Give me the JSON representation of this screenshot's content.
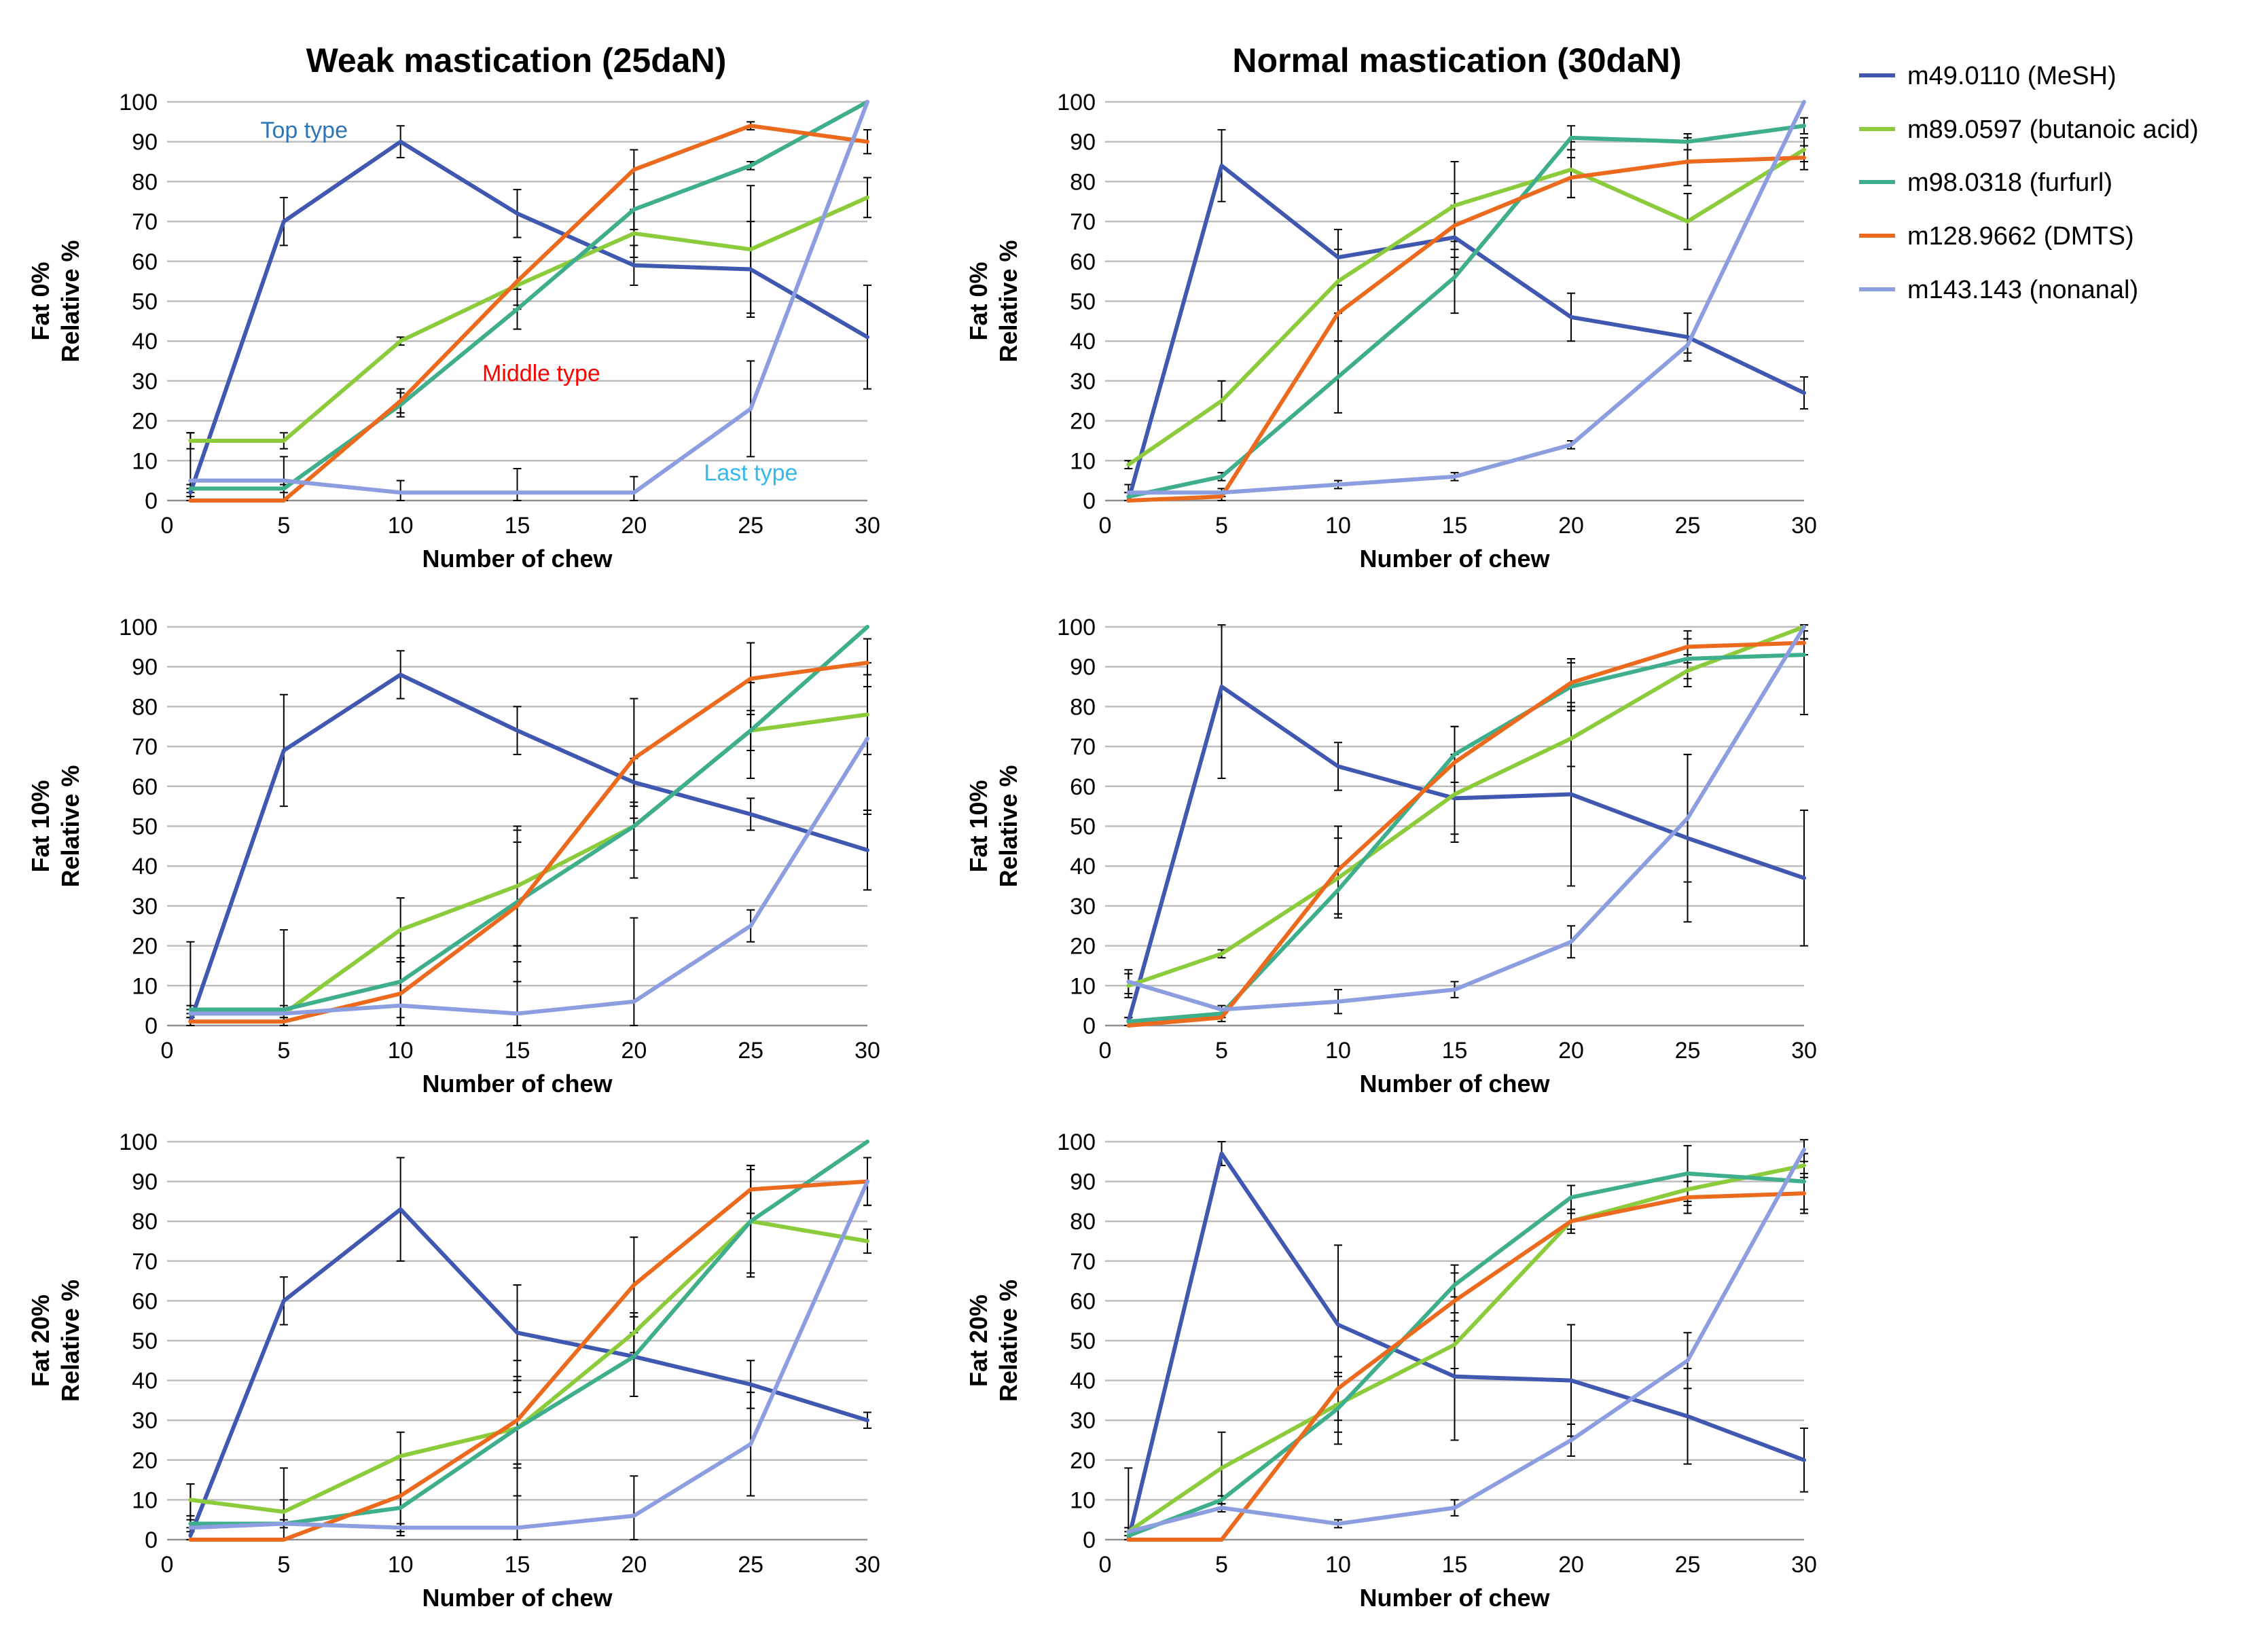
{
  "columns": [
    {
      "title": "Weak mastication (25daN)"
    },
    {
      "title": "Normal mastication (30daN)"
    }
  ],
  "series": [
    {
      "key": "mesh",
      "label": "m49.0110 (MeSH)",
      "color": "#4158b0"
    },
    {
      "key": "butanoic",
      "label": "m89.0597 (butanoic acid)",
      "color": "#8ccc3c"
    },
    {
      "key": "furfurl",
      "label": "m98.0318 (furfurl)",
      "color": "#3fae8c"
    },
    {
      "key": "dmts",
      "label": "m128.9662 (DMTS)",
      "color": "#ec6a1e"
    },
    {
      "key": "nonanal",
      "label": "m143.143 (nonanal)",
      "color": "#8c9ee0"
    }
  ],
  "chart_data": [
    {
      "type": "line",
      "id": "weak-fat0",
      "xlabel": "Number of chew",
      "ylabel": [
        "Fat 0%",
        "Relative %"
      ],
      "x": [
        1,
        5,
        10,
        15,
        20,
        25,
        30
      ],
      "xticks": [
        0,
        5,
        10,
        15,
        20,
        25,
        30
      ],
      "xlim": [
        0,
        30
      ],
      "ylim": [
        0,
        100
      ],
      "yticks": [
        0,
        10,
        20,
        30,
        40,
        50,
        60,
        70,
        80,
        90,
        100
      ],
      "series": {
        "mesh": [
          2,
          70,
          90,
          72,
          59,
          58,
          41
        ],
        "butanoic": [
          15,
          15,
          40,
          54,
          67,
          63,
          76
        ],
        "furfurl": [
          3,
          3,
          24,
          48,
          73,
          84,
          100
        ],
        "dmts": [
          0,
          0,
          25,
          55,
          83,
          94,
          90
        ],
        "nonanal": [
          5,
          5,
          2,
          2,
          2,
          23,
          100
        ]
      },
      "errors": {
        "mesh": [
          1,
          6,
          4,
          6,
          5,
          12,
          13
        ],
        "butanoic": [
          2,
          2,
          1,
          6,
          6,
          16,
          5
        ],
        "furfurl": [
          1,
          1,
          3,
          5,
          5,
          1,
          0
        ],
        "dmts": [
          0,
          0,
          3,
          6,
          5,
          1,
          3
        ],
        "nonanal": [
          12,
          6,
          3,
          6,
          4,
          12,
          0
        ]
      },
      "annotations": [
        {
          "text": "Top type",
          "color": "#2e75b6",
          "x": 4,
          "y": 91
        },
        {
          "text": "Middle type",
          "color": "#ff0000",
          "x": 13.5,
          "y": 30
        },
        {
          "text": "Last type",
          "color": "#35b8ea",
          "x": 23,
          "y": 5
        }
      ]
    },
    {
      "type": "line",
      "id": "normal-fat0",
      "xlabel": "Number of chew",
      "ylabel": [
        "Fat 0%",
        "Relative %"
      ],
      "x": [
        1,
        5,
        10,
        15,
        20,
        25,
        30
      ],
      "xticks": [
        0,
        5,
        10,
        15,
        20,
        25,
        30
      ],
      "xlim": [
        0,
        30
      ],
      "ylim": [
        0,
        100
      ],
      "yticks": [
        0,
        10,
        20,
        30,
        40,
        50,
        60,
        70,
        80,
        90,
        100
      ],
      "series": {
        "mesh": [
          0,
          84,
          61,
          66,
          46,
          41,
          27
        ],
        "butanoic": [
          9,
          25,
          55,
          74,
          83,
          70,
          88
        ],
        "furfurl": [
          1,
          6,
          31,
          56,
          91,
          90,
          94
        ],
        "dmts": [
          0,
          1,
          47,
          69,
          81,
          85,
          86
        ],
        "nonanal": [
          2,
          2,
          4,
          6,
          14,
          39,
          100
        ]
      },
      "errors": {
        "mesh": [
          2,
          9,
          7,
          8,
          6,
          6,
          4
        ],
        "butanoic": [
          1,
          5,
          8,
          11,
          7,
          7,
          3
        ],
        "furfurl": [
          1,
          1,
          9,
          9,
          3,
          2,
          2
        ],
        "dmts": [
          0,
          1,
          7,
          8,
          5,
          6,
          3
        ],
        "nonanal": [
          2,
          1,
          1,
          1,
          1,
          2,
          0
        ]
      },
      "annotations": []
    },
    {
      "type": "line",
      "id": "weak-fat10",
      "xlabel": "Number of chew",
      "ylabel": [
        "Fat 10%",
        "Relative %"
      ],
      "x": [
        1,
        5,
        10,
        15,
        20,
        25,
        30
      ],
      "xticks": [
        0,
        5,
        10,
        15,
        20,
        25,
        30
      ],
      "xlim": [
        0,
        30
      ],
      "ylim": [
        0,
        100
      ],
      "yticks": [
        0,
        10,
        20,
        30,
        40,
        50,
        60,
        70,
        80,
        90,
        100
      ],
      "series": {
        "mesh": [
          1,
          69,
          88,
          74,
          61,
          53,
          44
        ],
        "butanoic": [
          3,
          3,
          24,
          35,
          50,
          74,
          78
        ],
        "furfurl": [
          4,
          4,
          11,
          31,
          50,
          74,
          100
        ],
        "dmts": [
          1,
          1,
          8,
          30,
          67,
          87,
          91
        ],
        "nonanal": [
          3,
          3,
          5,
          3,
          6,
          25,
          72
        ]
      },
      "errors": {
        "mesh": [
          1,
          14,
          6,
          6,
          6,
          4,
          10
        ],
        "butanoic": [
          1,
          1,
          8,
          15,
          13,
          12,
          10
        ],
        "furfurl": [
          1,
          1,
          9,
          15,
          6,
          5,
          0
        ],
        "dmts": [
          0,
          1,
          8,
          19,
          15,
          9,
          6
        ],
        "nonanal": [
          18,
          21,
          12,
          17,
          21,
          4,
          19
        ]
      },
      "annotations": []
    },
    {
      "type": "line",
      "id": "normal-fat10",
      "xlabel": "Number of chew",
      "ylabel": [
        "Fat 10%",
        "Relative %"
      ],
      "x": [
        1,
        5,
        10,
        15,
        20,
        25,
        30
      ],
      "xticks": [
        0,
        5,
        10,
        15,
        20,
        25,
        30
      ],
      "xlim": [
        0,
        30
      ],
      "ylim": [
        0,
        100
      ],
      "yticks": [
        0,
        10,
        20,
        30,
        40,
        50,
        60,
        70,
        80,
        90,
        100
      ],
      "series": {
        "mesh": [
          1,
          85,
          65,
          57,
          58,
          47,
          37
        ],
        "butanoic": [
          10,
          18,
          37,
          58,
          72,
          89,
          100
        ],
        "furfurl": [
          1,
          3,
          34,
          68,
          85,
          92,
          93
        ],
        "dmts": [
          0,
          2,
          39,
          66,
          86,
          95,
          96
        ],
        "nonanal": [
          11,
          4,
          6,
          9,
          21,
          52,
          100
        ]
      },
      "errors": {
        "mesh": [
          1,
          23,
          6,
          11,
          23,
          21,
          17
        ],
        "butanoic": [
          3,
          1,
          10,
          10,
          7,
          4,
          3
        ],
        "furfurl": [
          1,
          1,
          6,
          7,
          6,
          5,
          15
        ],
        "dmts": [
          0,
          1,
          11,
          9,
          6,
          4,
          3
        ],
        "nonanal": [
          3,
          1,
          3,
          2,
          4,
          16,
          3
        ]
      },
      "annotations": []
    },
    {
      "type": "line",
      "id": "weak-fat20",
      "xlabel": "Number of chew",
      "ylabel": [
        "Fat 20%",
        "Relative %"
      ],
      "x": [
        1,
        5,
        10,
        15,
        20,
        25,
        30
      ],
      "xticks": [
        0,
        5,
        10,
        15,
        20,
        25,
        30
      ],
      "xlim": [
        0,
        30
      ],
      "ylim": [
        0,
        100
      ],
      "yticks": [
        0,
        10,
        20,
        30,
        40,
        50,
        60,
        70,
        80,
        90,
        100
      ],
      "series": {
        "mesh": [
          1,
          60,
          83,
          52,
          46,
          39,
          30
        ],
        "butanoic": [
          10,
          7,
          21,
          28,
          52,
          80,
          75
        ],
        "furfurl": [
          4,
          4,
          8,
          28,
          46,
          80,
          100
        ],
        "dmts": [
          0,
          0,
          11,
          30,
          64,
          88,
          90
        ],
        "nonanal": [
          3,
          4,
          3,
          3,
          6,
          24,
          90
        ]
      },
      "errors": {
        "mesh": [
          1,
          6,
          13,
          12,
          10,
          6,
          2
        ],
        "butanoic": [
          4,
          3,
          6,
          9,
          5,
          14,
          3
        ],
        "furfurl": [
          1,
          1,
          7,
          17,
          10,
          13,
          0
        ],
        "dmts": [
          0,
          0,
          10,
          11,
          12,
          6,
          6
        ],
        "nonanal": [
          11,
          14,
          1,
          15,
          10,
          13,
          6
        ]
      },
      "annotations": []
    },
    {
      "type": "line",
      "id": "normal-fat20",
      "xlabel": "Number of chew",
      "ylabel": [
        "Fat 20%",
        "Relative %"
      ],
      "x": [
        1,
        5,
        10,
        15,
        20,
        25,
        30
      ],
      "xticks": [
        0,
        5,
        10,
        15,
        20,
        25,
        30
      ],
      "xlim": [
        0,
        30
      ],
      "ylim": [
        0,
        100
      ],
      "yticks": [
        0,
        10,
        20,
        30,
        40,
        50,
        60,
        70,
        80,
        90,
        100
      ],
      "series": {
        "mesh": [
          0,
          97,
          54,
          41,
          40,
          31,
          20
        ],
        "butanoic": [
          2,
          18,
          34,
          49,
          80,
          88,
          94
        ],
        "furfurl": [
          1,
          10,
          33,
          64,
          86,
          92,
          90
        ],
        "dmts": [
          0,
          0,
          38,
          60,
          80,
          86,
          87
        ],
        "nonanal": [
          2,
          8,
          4,
          8,
          25,
          45,
          98
        ]
      },
      "errors": {
        "mesh": [
          18,
          3,
          20,
          16,
          14,
          12,
          8
        ],
        "butanoic": [
          1,
          9,
          7,
          6,
          3,
          4,
          3
        ],
        "furfurl": [
          1,
          1,
          9,
          3,
          3,
          7,
          7
        ],
        "dmts": [
          0,
          0,
          8,
          9,
          2,
          4,
          5
        ],
        "nonanal": [
          1,
          1,
          1,
          2,
          4,
          7,
          3
        ]
      },
      "annotations": []
    }
  ]
}
